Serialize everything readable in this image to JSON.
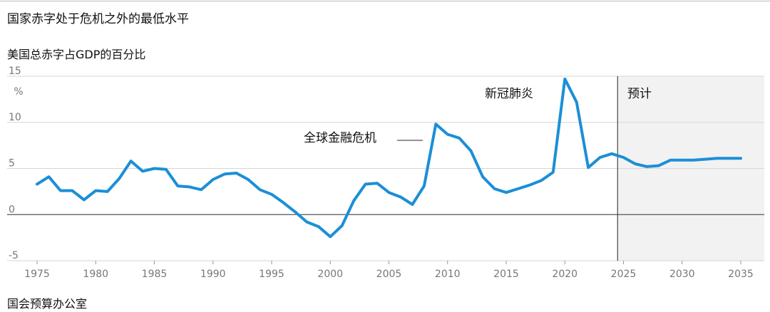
{
  "title": "国家赤字处于危机之外的最低水平",
  "source": "国会预算办公室",
  "chart_data": {
    "type": "line",
    "subtitle": "美国总赤字占GDP的百分比",
    "unit": "%",
    "xlim": [
      1975,
      2035
    ],
    "ylim": [
      -5,
      15
    ],
    "xticks": [
      1975,
      1980,
      1985,
      1990,
      1995,
      2000,
      2005,
      2010,
      2015,
      2020,
      2025,
      2030,
      2035
    ],
    "yticks": [
      -5,
      0,
      5,
      10,
      15
    ],
    "forecast_label": "预计",
    "forecast_start": 2024.5,
    "annotations": [
      {
        "text": "新冠肺炎",
        "x": 2020
      },
      {
        "text": "全球金融危机",
        "x": 2009
      }
    ],
    "series_color": "#1b8fd6",
    "series": [
      {
        "x": [
          1975,
          1976,
          1977,
          1978,
          1979,
          1980,
          1981,
          1982,
          1983,
          1984,
          1985,
          1986,
          1987,
          1988,
          1989,
          1990,
          1991,
          1992,
          1993,
          1994,
          1995,
          1996,
          1997,
          1998,
          1999,
          2000,
          2001,
          2002,
          2003,
          2004,
          2005,
          2006,
          2007,
          2008,
          2009,
          2010,
          2011,
          2012,
          2013,
          2014,
          2015,
          2016,
          2017,
          2018,
          2019,
          2020,
          2021,
          2022,
          2023,
          2024,
          2025,
          2026,
          2027,
          2028,
          2029,
          2030,
          2031,
          2032,
          2033,
          2034,
          2035
        ],
        "y": [
          3.3,
          4.1,
          2.6,
          2.6,
          1.6,
          2.6,
          2.5,
          3.9,
          5.8,
          4.7,
          5.0,
          4.9,
          3.1,
          3.0,
          2.7,
          3.8,
          4.4,
          4.5,
          3.8,
          2.7,
          2.2,
          1.3,
          0.3,
          -0.8,
          -1.3,
          -2.4,
          -1.2,
          1.5,
          3.3,
          3.4,
          2.4,
          1.9,
          1.1,
          3.1,
          9.8,
          8.7,
          8.3,
          6.9,
          4.1,
          2.8,
          2.4,
          2.8,
          3.2,
          3.7,
          4.6,
          14.7,
          12.2,
          5.1,
          6.2,
          6.6,
          6.2,
          5.5,
          5.2,
          5.3,
          5.9,
          5.9,
          5.9,
          6.0,
          6.1,
          6.1,
          6.1
        ]
      }
    ]
  }
}
